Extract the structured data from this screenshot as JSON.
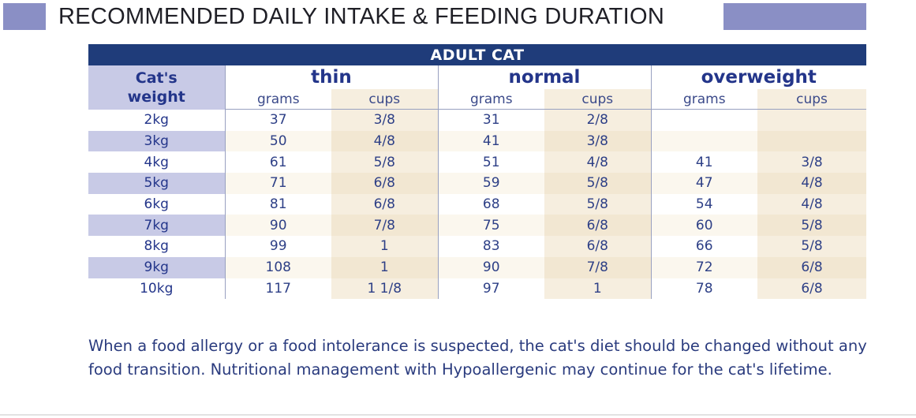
{
  "heading": "RECOMMENDED DAILY INTAKE & FEEDING DURATION",
  "table": {
    "caption": "ADULT CAT",
    "weight_header_line1": "Cat's",
    "weight_header_line2": "weight",
    "groups": [
      "thin",
      "normal",
      "overweight"
    ],
    "sub_headers": [
      "grams",
      "cups",
      "grams",
      "cups",
      "grams",
      "cups"
    ],
    "rows": [
      {
        "weight": "2kg",
        "cells": [
          "37",
          "3/8",
          "31",
          "2/8",
          "",
          ""
        ]
      },
      {
        "weight": "3kg",
        "cells": [
          "50",
          "4/8",
          "41",
          "3/8",
          "",
          ""
        ]
      },
      {
        "weight": "4kg",
        "cells": [
          "61",
          "5/8",
          "51",
          "4/8",
          "41",
          "3/8"
        ]
      },
      {
        "weight": "5kg",
        "cells": [
          "71",
          "6/8",
          "59",
          "5/8",
          "47",
          "4/8"
        ]
      },
      {
        "weight": "6kg",
        "cells": [
          "81",
          "6/8",
          "68",
          "5/8",
          "54",
          "4/8"
        ]
      },
      {
        "weight": "7kg",
        "cells": [
          "90",
          "7/8",
          "75",
          "6/8",
          "60",
          "5/8"
        ]
      },
      {
        "weight": "8kg",
        "cells": [
          "99",
          "1",
          "83",
          "6/8",
          "66",
          "5/8"
        ]
      },
      {
        "weight": "9kg",
        "cells": [
          "108",
          "1",
          "90",
          "7/8",
          "72",
          "6/8"
        ]
      },
      {
        "weight": "10kg",
        "cells": [
          "117",
          "1 1/8",
          "97",
          "1",
          "78",
          "6/8"
        ]
      }
    ]
  },
  "note": "When a food allergy or a food intolerance is suspected, the cat's diet should be changed without any food transition. Nutritional management with Hypoallergenic may continue for the cat's lifetime.",
  "colors": {
    "accent_bar": "#8a8fc5",
    "caption_bg": "#1f3c7a",
    "text_blue": "#2d3f86",
    "weight_highlight": "#c8cae6",
    "cups_column": "#f6eedf"
  }
}
